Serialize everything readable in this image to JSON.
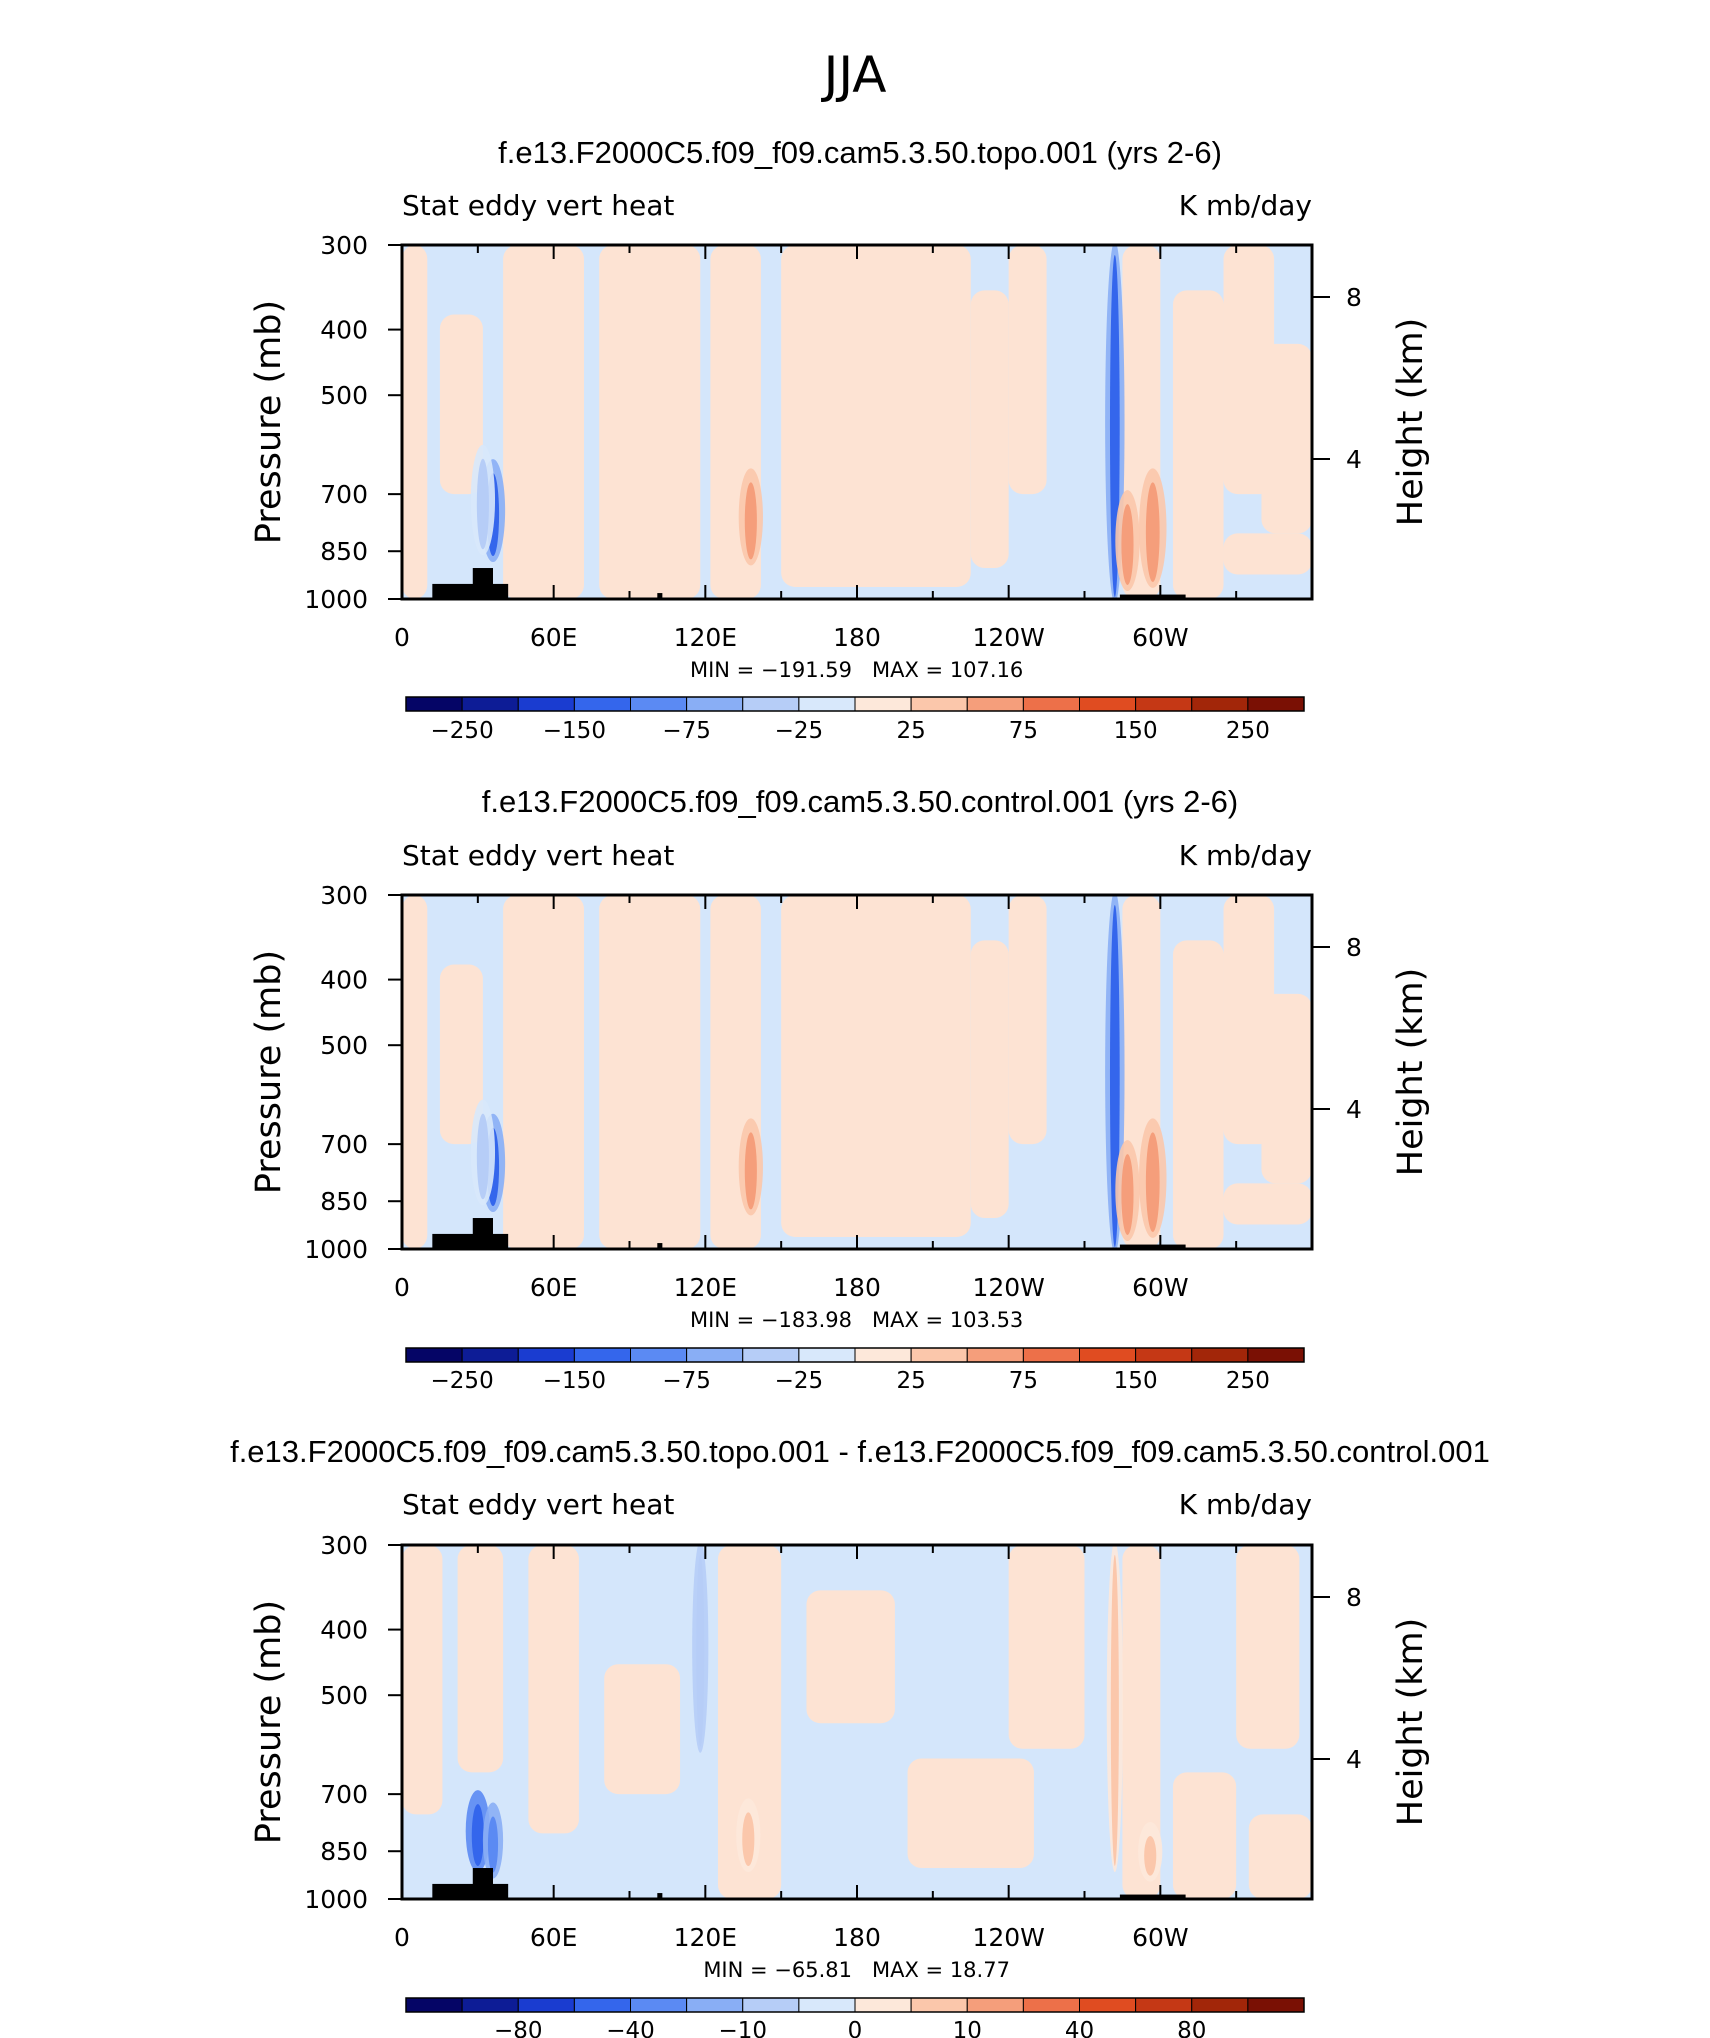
{
  "figure": {
    "main_title": "JJA"
  },
  "chart_data": [
    {
      "type": "heatmap",
      "title": "f.e13.F2000C5.f09_f09.cam5.3.50.topo.001 (yrs 2-6)",
      "left_label": "Stat eddy vert heat",
      "right_label": "K mb/day",
      "ylabel": "Pressure (mb)",
      "y2label": "Height (km)",
      "y_ticks": [
        300,
        400,
        500,
        700,
        850,
        1000
      ],
      "y2_ticks": [
        8,
        4
      ],
      "x_ticks": [
        "0",
        "60E",
        "120E",
        "180",
        "120W",
        "60W"
      ],
      "x_tick_values": [
        0,
        60,
        120,
        180,
        240,
        300
      ],
      "xlim": [
        0,
        360
      ],
      "ylim": [
        1000,
        300
      ],
      "min_label": "MIN =  −191.59",
      "max_label": "MAX =  107.16",
      "colorbar_ticks": [
        "−250",
        "−150",
        "−75",
        "−25",
        "25",
        "75",
        "150",
        "250"
      ],
      "colorbar_levels": [
        -300,
        -250,
        -200,
        -150,
        -100,
        -75,
        -50,
        -25,
        0,
        25,
        50,
        75,
        100,
        150,
        200,
        250,
        300
      ],
      "features": [
        {
          "lon": 36,
          "p_top": 630,
          "p_bot": 870,
          "value": -180,
          "width_deg": 3
        },
        {
          "lon": 32,
          "p_top": 600,
          "p_bot": 850,
          "value": -40,
          "width_deg": 3
        },
        {
          "lon": 138,
          "p_top": 650,
          "p_bot": 880,
          "value": 90,
          "width_deg": 3
        },
        {
          "lon": 282,
          "p_top": 300,
          "p_bot": 1000,
          "value": -190,
          "width_deg": 2.4
        },
        {
          "lon": 287,
          "p_top": 700,
          "p_bot": 960,
          "value": 100,
          "width_deg": 3
        },
        {
          "lon": 297,
          "p_top": 650,
          "p_bot": 950,
          "value": 80,
          "width_deg": 3.4
        }
      ],
      "topography": [
        {
          "lon0": 12,
          "lon1": 42,
          "p": 950
        },
        {
          "lon0": 28,
          "lon1": 36,
          "p": 900
        },
        {
          "lon0": 101,
          "lon1": 103,
          "p": 980
        },
        {
          "lon0": 284,
          "lon1": 310,
          "p": 985
        }
      ]
    },
    {
      "type": "heatmap",
      "title": "f.e13.F2000C5.f09_f09.cam5.3.50.control.001 (yrs 2-6)",
      "left_label": "Stat eddy vert heat",
      "right_label": "K mb/day",
      "ylabel": "Pressure (mb)",
      "y2label": "Height (km)",
      "y_ticks": [
        300,
        400,
        500,
        700,
        850,
        1000
      ],
      "y2_ticks": [
        8,
        4
      ],
      "x_ticks": [
        "0",
        "60E",
        "120E",
        "180",
        "120W",
        "60W"
      ],
      "x_tick_values": [
        0,
        60,
        120,
        180,
        240,
        300
      ],
      "xlim": [
        0,
        360
      ],
      "ylim": [
        1000,
        300
      ],
      "min_label": "MIN =  −183.98",
      "max_label": "MAX =  103.53",
      "colorbar_ticks": [
        "−250",
        "−150",
        "−75",
        "−25",
        "25",
        "75",
        "150",
        "250"
      ],
      "colorbar_levels": [
        -300,
        -250,
        -200,
        -150,
        -100,
        -75,
        -50,
        -25,
        0,
        25,
        50,
        75,
        100,
        150,
        200,
        250,
        300
      ],
      "features": [
        {
          "lon": 36,
          "p_top": 640,
          "p_bot": 870,
          "value": -175,
          "width_deg": 3
        },
        {
          "lon": 32,
          "p_top": 610,
          "p_bot": 850,
          "value": -40,
          "width_deg": 3
        },
        {
          "lon": 138,
          "p_top": 650,
          "p_bot": 880,
          "value": 85,
          "width_deg": 3
        },
        {
          "lon": 282,
          "p_top": 300,
          "p_bot": 1000,
          "value": -180,
          "width_deg": 2.4
        },
        {
          "lon": 287,
          "p_top": 700,
          "p_bot": 960,
          "value": 95,
          "width_deg": 3
        },
        {
          "lon": 297,
          "p_top": 650,
          "p_bot": 950,
          "value": 75,
          "width_deg": 3.4
        }
      ],
      "topography": [
        {
          "lon0": 12,
          "lon1": 42,
          "p": 950
        },
        {
          "lon0": 28,
          "lon1": 36,
          "p": 900
        },
        {
          "lon0": 101,
          "lon1": 103,
          "p": 980
        },
        {
          "lon0": 284,
          "lon1": 310,
          "p": 985
        }
      ]
    },
    {
      "type": "heatmap",
      "title": "f.e13.F2000C5.f09_f09.cam5.3.50.topo.001 - f.e13.F2000C5.f09_f09.cam5.3.50.control.001",
      "left_label": "Stat eddy vert heat",
      "right_label": "K mb/day",
      "ylabel": "Pressure (mb)",
      "y2label": "Height (km)",
      "y_ticks": [
        300,
        400,
        500,
        700,
        850,
        1000
      ],
      "y2_ticks": [
        8,
        4
      ],
      "x_ticks": [
        "0",
        "60E",
        "120E",
        "180",
        "120W",
        "60W"
      ],
      "x_tick_values": [
        0,
        60,
        120,
        180,
        240,
        300
      ],
      "xlim": [
        0,
        360
      ],
      "ylim": [
        1000,
        300
      ],
      "min_label": "MIN =  −65.81",
      "max_label": "MAX =   18.77",
      "colorbar_ticks": [
        "−80",
        "−40",
        "−10",
        "0",
        "10",
        "40",
        "80"
      ],
      "colorbar_levels": [
        -100,
        -80,
        -60,
        -40,
        -20,
        -10,
        -5,
        0,
        5,
        10,
        20,
        40,
        60,
        80,
        100
      ],
      "features": [
        {
          "lon": 30,
          "p_top": 700,
          "p_bot": 900,
          "value": -30,
          "width_deg": 3
        },
        {
          "lon": 36,
          "p_top": 730,
          "p_bot": 920,
          "value": -20,
          "width_deg": 2.5
        },
        {
          "lon": 118,
          "p_top": 300,
          "p_bot": 600,
          "value": -7,
          "width_deg": 2
        },
        {
          "lon": 137,
          "p_top": 720,
          "p_bot": 900,
          "value": 15,
          "width_deg": 3
        },
        {
          "lon": 282,
          "p_top": 300,
          "p_bot": 900,
          "value": 15,
          "width_deg": 2
        },
        {
          "lon": 296,
          "p_top": 780,
          "p_bot": 930,
          "value": 18,
          "width_deg": 3
        }
      ],
      "topography": [
        {
          "lon0": 12,
          "lon1": 42,
          "p": 950
        },
        {
          "lon0": 28,
          "lon1": 36,
          "p": 900
        },
        {
          "lon0": 101,
          "lon1": 103,
          "p": 980
        },
        {
          "lon0": 284,
          "lon1": 310,
          "p": 985
        }
      ]
    }
  ],
  "colors": {
    "background": "#ffffff",
    "light_blue": "#d4e6fb",
    "light_peach": "#fde3d3",
    "topography": "#000000",
    "palette": [
      "#050566",
      "#0d1c96",
      "#1a3cd0",
      "#3466ec",
      "#5b8af3",
      "#89aef5",
      "#b6cdf7",
      "#d8e8fb",
      "#fde8da",
      "#fbc7ab",
      "#f59e7b",
      "#ed7049",
      "#e04c21",
      "#c53815",
      "#a22609",
      "#7a1004"
    ]
  }
}
